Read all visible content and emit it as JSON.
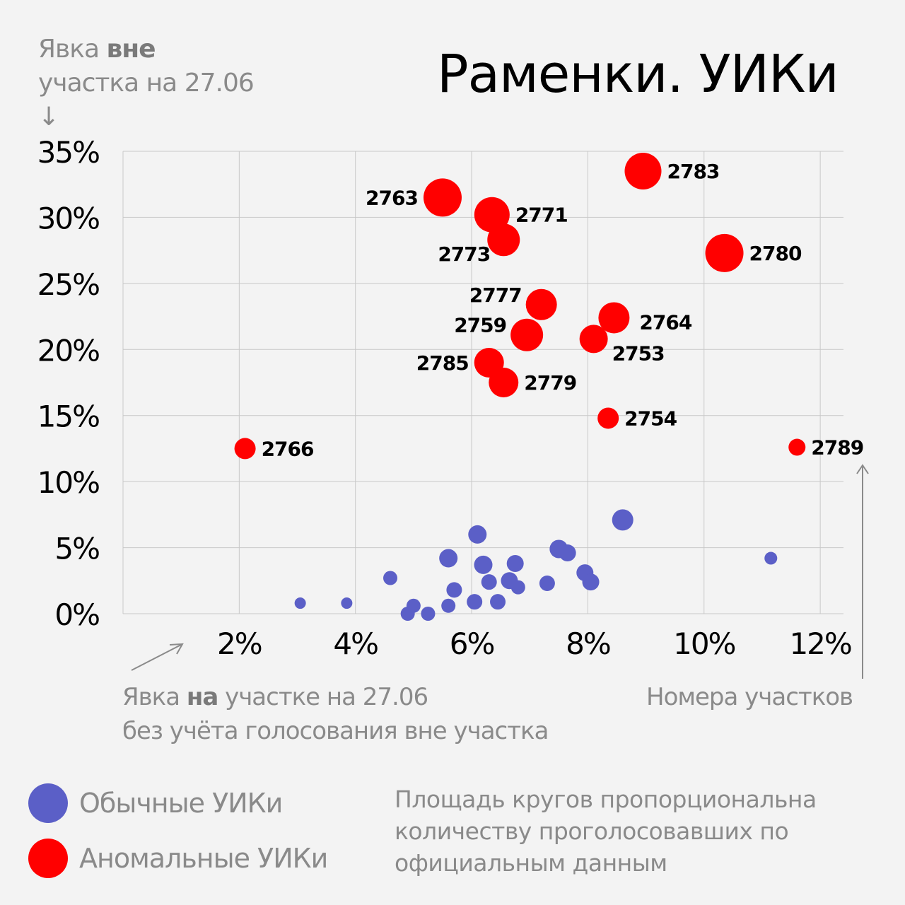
{
  "title": "Раменки. УИКи",
  "y_axis_caption": {
    "part1": "Явка ",
    "bold": "вне",
    "part2": "участка на 27.06",
    "arrow": "↓"
  },
  "x_axis_caption": {
    "line1_part1": "Явка ",
    "line1_bold": "на",
    "line1_part2": " участке на 27.06",
    "line2": "без учёта голосования вне участка"
  },
  "labels_caption": "Номера участков",
  "legend": [
    {
      "label": "Обычные УИКи",
      "color": "#5b5fc7"
    },
    {
      "label": "Аномальные УИКи",
      "color": "#ff0000"
    }
  ],
  "note": "Площадь кругов пропорциональна количеству проголосовавших по официальным данным",
  "colors": {
    "normal": "#5b5fc7",
    "anomalous": "#ff0000",
    "grid": "#c8c8c8",
    "arrow": "#8a8a8a"
  },
  "chart_data": {
    "type": "scatter",
    "xlim": [
      0,
      12.4
    ],
    "ylim": [
      0,
      35
    ],
    "x_ticks": [
      2,
      4,
      6,
      8,
      10,
      12
    ],
    "x_tick_labels": [
      "2%",
      "4%",
      "6%",
      "8%",
      "10%",
      "12%"
    ],
    "y_ticks": [
      0,
      5,
      10,
      15,
      20,
      25,
      30,
      35
    ],
    "y_tick_labels": [
      "0%",
      "5%",
      "10%",
      "15%",
      "20%",
      "25%",
      "30%",
      "35%"
    ],
    "grid": true,
    "series": [
      {
        "name": "Аномальные УИКи",
        "points": [
          {
            "x": 8.95,
            "y": 33.5,
            "size": 26,
            "label": "2783",
            "label_pos": "right"
          },
          {
            "x": 5.5,
            "y": 31.5,
            "size": 27,
            "label": "2763",
            "label_pos": "left"
          },
          {
            "x": 6.35,
            "y": 30.2,
            "size": 25,
            "label": "2771",
            "label_pos": "right"
          },
          {
            "x": 6.55,
            "y": 28.3,
            "size": 23,
            "label": "2773",
            "label_pos": "left-below"
          },
          {
            "x": 10.35,
            "y": 27.3,
            "size": 27,
            "label": "2780",
            "label_pos": "right"
          },
          {
            "x": 7.2,
            "y": 23.4,
            "size": 22,
            "label": "2777",
            "label_pos": "left-above"
          },
          {
            "x": 8.45,
            "y": 22.4,
            "size": 22,
            "label": "2764",
            "label_pos": "right-below"
          },
          {
            "x": 6.95,
            "y": 21.1,
            "size": 23,
            "label": "2759",
            "label_pos": "left-above"
          },
          {
            "x": 8.1,
            "y": 20.8,
            "size": 20,
            "label": "2753",
            "label_pos": "right-below"
          },
          {
            "x": 6.3,
            "y": 19.0,
            "size": 21,
            "label": "2785",
            "label_pos": "left"
          },
          {
            "x": 6.55,
            "y": 17.5,
            "size": 21,
            "label": "2779",
            "label_pos": "right"
          },
          {
            "x": 8.35,
            "y": 14.8,
            "size": 15,
            "label": "2754",
            "label_pos": "right"
          },
          {
            "x": 2.1,
            "y": 12.5,
            "size": 15,
            "label": "2766",
            "label_pos": "right"
          },
          {
            "x": 11.6,
            "y": 12.6,
            "size": 12,
            "label": "2789",
            "label_pos": "right"
          }
        ]
      },
      {
        "name": "Обычные УИКи",
        "points": [
          {
            "x": 8.6,
            "y": 7.1,
            "size": 15
          },
          {
            "x": 6.1,
            "y": 6.0,
            "size": 13
          },
          {
            "x": 7.5,
            "y": 4.9,
            "size": 13
          },
          {
            "x": 7.65,
            "y": 4.6,
            "size": 12
          },
          {
            "x": 5.6,
            "y": 4.2,
            "size": 13
          },
          {
            "x": 11.15,
            "y": 4.2,
            "size": 9
          },
          {
            "x": 6.75,
            "y": 3.8,
            "size": 12
          },
          {
            "x": 6.2,
            "y": 3.7,
            "size": 13
          },
          {
            "x": 7.95,
            "y": 3.1,
            "size": 12
          },
          {
            "x": 4.6,
            "y": 2.7,
            "size": 10
          },
          {
            "x": 6.65,
            "y": 2.5,
            "size": 12
          },
          {
            "x": 8.05,
            "y": 2.4,
            "size": 12
          },
          {
            "x": 6.3,
            "y": 2.4,
            "size": 11
          },
          {
            "x": 7.3,
            "y": 2.3,
            "size": 11
          },
          {
            "x": 6.8,
            "y": 2.0,
            "size": 10
          },
          {
            "x": 5.7,
            "y": 1.8,
            "size": 11
          },
          {
            "x": 6.05,
            "y": 0.9,
            "size": 11
          },
          {
            "x": 6.45,
            "y": 0.9,
            "size": 11
          },
          {
            "x": 3.05,
            "y": 0.8,
            "size": 8
          },
          {
            "x": 3.85,
            "y": 0.8,
            "size": 8
          },
          {
            "x": 5.0,
            "y": 0.6,
            "size": 10
          },
          {
            "x": 5.6,
            "y": 0.6,
            "size": 10
          },
          {
            "x": 4.9,
            "y": 0.0,
            "size": 10
          },
          {
            "x": 5.25,
            "y": 0.0,
            "size": 10
          }
        ]
      }
    ]
  }
}
